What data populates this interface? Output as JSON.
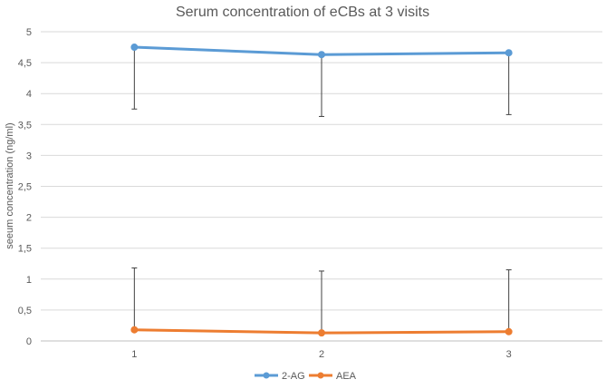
{
  "chart_data": {
    "type": "line",
    "title": "Serum concentration of eCBs at 3 visits",
    "xlabel": "",
    "ylabel": "seeum concentration (ng/ml)",
    "categories": [
      "1",
      "2",
      "3"
    ],
    "ylim": [
      0,
      5
    ],
    "yticks": [
      "0",
      "0,5",
      "1",
      "1,5",
      "2",
      "2,5",
      "3",
      "3,5",
      "4",
      "4,5",
      "5"
    ],
    "ytick_values": [
      0,
      0.5,
      1,
      1.5,
      2,
      2.5,
      3,
      3.5,
      4,
      4.5,
      5
    ],
    "grid": true,
    "legend_position": "bottom",
    "series": [
      {
        "name": "2-AG",
        "color": "#5b9bd5",
        "values": [
          4.75,
          4.63,
          4.66
        ],
        "error_minus": [
          1.0,
          1.0,
          1.0
        ]
      },
      {
        "name": "AEA",
        "color": "#ed7d31",
        "values": [
          0.18,
          0.13,
          0.15
        ],
        "error_plus": [
          1.0,
          1.0,
          1.0
        ]
      }
    ]
  }
}
